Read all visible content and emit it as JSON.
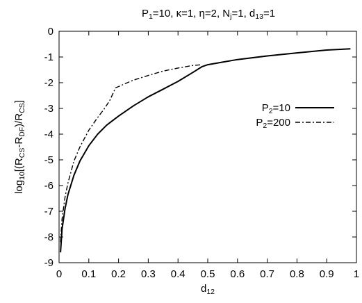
{
  "chart_data": {
    "type": "line",
    "title": {
      "parts": [
        {
          "t": "P"
        },
        {
          "t": "1",
          "sub": true
        },
        {
          "t": "=10, κ=1, η=2, N"
        },
        {
          "t": "j",
          "sub": true
        },
        {
          "t": "=1, d"
        },
        {
          "t": "13",
          "sub": true
        },
        {
          "t": "=1"
        }
      ]
    },
    "xlabel": {
      "parts": [
        {
          "t": "d"
        },
        {
          "t": "12",
          "sub": true
        }
      ]
    },
    "ylabel": {
      "parts": [
        {
          "t": "log"
        },
        {
          "t": "10",
          "sub": true
        },
        {
          "t": "[(R"
        },
        {
          "t": "CS",
          "sub": true
        },
        {
          "t": "-R"
        },
        {
          "t": "DF",
          "sub": true
        },
        {
          "t": ")/R"
        },
        {
          "t": "CS",
          "sub": true
        },
        {
          "t": "]"
        }
      ]
    },
    "xlim": [
      0,
      1
    ],
    "ylim": [
      -9,
      0
    ],
    "xticks": [
      0,
      0.1,
      0.2,
      0.3,
      0.4,
      0.5,
      0.6,
      0.7,
      0.8,
      0.9,
      1
    ],
    "xtick_labels": [
      "0",
      "0.1",
      "0.2",
      "0.3",
      "0.4",
      "0.5",
      "0.6",
      "0.7",
      "0.8",
      "0.9",
      "1"
    ],
    "yticks": [
      0,
      -1,
      -2,
      -3,
      -4,
      -5,
      -6,
      -7,
      -8,
      -9
    ],
    "ytick_labels": [
      "0",
      "-1",
      "-2",
      "-3",
      "-4",
      "-5",
      "-6",
      "-7",
      "-8",
      "-9"
    ],
    "grid": false,
    "legend_position": "right",
    "series": [
      {
        "name_parts": [
          {
            "t": "P"
          },
          {
            "t": "2",
            "sub": true
          },
          {
            "t": "=10"
          }
        ],
        "style": "solid",
        "x": [
          0.005,
          0.01,
          0.02,
          0.03,
          0.05,
          0.07,
          0.1,
          0.13,
          0.16,
          0.2,
          0.25,
          0.3,
          0.35,
          0.4,
          0.45,
          0.48,
          0.5,
          0.55,
          0.6,
          0.7,
          0.8,
          0.9,
          0.98
        ],
        "y": [
          -8.6,
          -7.7,
          -6.9,
          -6.35,
          -5.6,
          -5.05,
          -4.45,
          -4.0,
          -3.65,
          -3.3,
          -2.9,
          -2.55,
          -2.25,
          -1.95,
          -1.6,
          -1.38,
          -1.3,
          -1.2,
          -1.1,
          -0.96,
          -0.84,
          -0.73,
          -0.68
        ]
      },
      {
        "name_parts": [
          {
            "t": "P"
          },
          {
            "t": "2",
            "sub": true
          },
          {
            "t": "=200"
          }
        ],
        "style": "dashdot",
        "x": [
          0.005,
          0.01,
          0.02,
          0.03,
          0.05,
          0.07,
          0.1,
          0.13,
          0.15,
          0.17,
          0.19,
          0.22,
          0.25,
          0.3,
          0.35,
          0.4,
          0.45,
          0.48
        ],
        "y": [
          -8.2,
          -7.3,
          -6.45,
          -5.9,
          -5.05,
          -4.5,
          -3.85,
          -3.35,
          -3.05,
          -2.7,
          -2.2,
          -2.05,
          -1.9,
          -1.72,
          -1.55,
          -1.43,
          -1.33,
          -1.3
        ]
      }
    ]
  }
}
